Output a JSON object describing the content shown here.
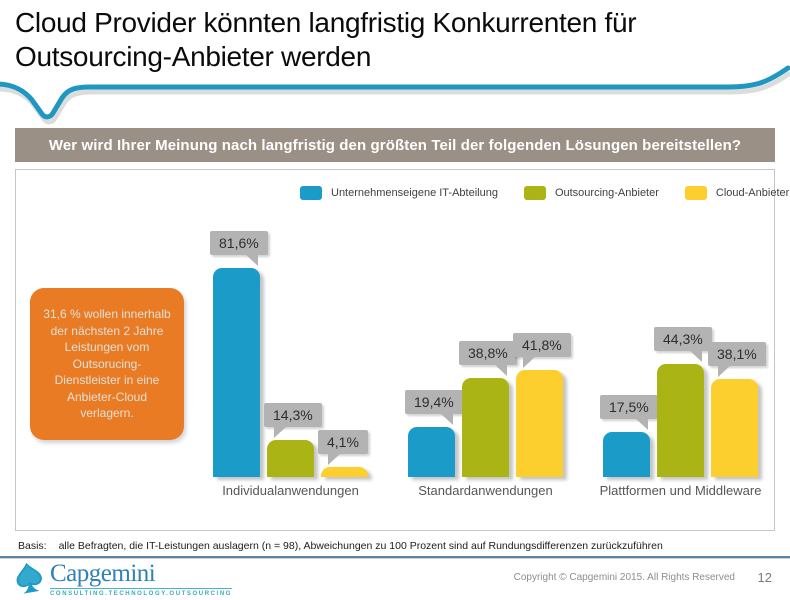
{
  "slide": {
    "title": "Cloud Provider könnten langfristig Konkurrenten für Outsourcing-Anbieter werden",
    "copyright": "Copyright © Capgemini 2015. All Rights Reserved",
    "page_number": "12"
  },
  "question": "Wer wird Ihrer Meinung nach langfristig den größten Teil der folgenden Lösungen bereitstellen?",
  "callout": {
    "text": "31,6 % wollen innerhalb der nächsten 2 Jahre Leistungen vom Outsorucing-Dienstleister in eine Anbieter-Cloud verlagern.",
    "bg_color": "#e87b23"
  },
  "basis": {
    "label": "Basis:",
    "text": "alle Befragten, die IT-Leistungen auslagern (n = 98), Abweichungen zu 100 Prozent sind auf Rundungsdifferenzen zurückzuführen"
  },
  "logo": {
    "brand": "Capgemini",
    "tagline": "CONSULTING.TECHNOLOGY.OUTSOURCING"
  },
  "colors": {
    "swoosh_blue": "#1f97c0",
    "banner_taupe": "#9a9086",
    "bubble_gray": "#b3b3b3",
    "callout_orange": "#e87b23"
  },
  "chart_data": {
    "type": "bar",
    "title": "Wer wird Ihrer Meinung nach langfristig den größten Teil der folgenden Lösungen bereitstellen?",
    "categories": [
      "Individualanwendungen",
      "Standardanwendungen",
      "Plattformen und Middleware"
    ],
    "series": [
      {
        "name": "Unternehmenseigene IT-Abteilung",
        "color": "#1b9cc8",
        "values": [
          81.6,
          19.4,
          17.5
        ],
        "labels": [
          "81,6%",
          "19,4%",
          "17,5%"
        ]
      },
      {
        "name": "Outsourcing-Anbieter",
        "color": "#aab414",
        "values": [
          14.3,
          38.8,
          44.3
        ],
        "labels": [
          "14,3%",
          "38,8%",
          "44,3%"
        ]
      },
      {
        "name": "Cloud-Anbieter",
        "color": "#fccf2e",
        "values": [
          4.1,
          41.8,
          38.1
        ],
        "labels": [
          "4,1%",
          "41,8%",
          "38,1%"
        ]
      }
    ],
    "value_suffix": "%",
    "ylim": [
      0,
      100
    ],
    "grid": false,
    "axis_lines": false,
    "legend_position": "top",
    "data_label_style": "gray speech bubbles above bars",
    "label_tail_sides": [
      [
        "right",
        "left",
        "left"
      ],
      [
        "right",
        "right",
        "left"
      ],
      [
        "right",
        "right",
        "left"
      ]
    ]
  }
}
